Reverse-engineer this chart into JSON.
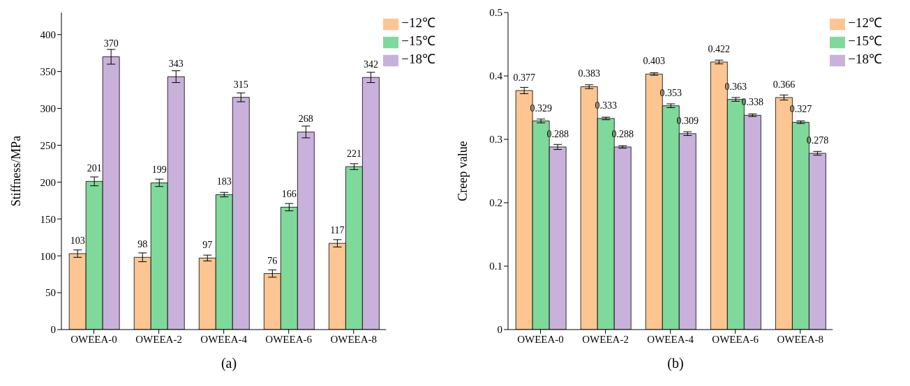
{
  "chart_data": [
    {
      "type": "bar",
      "title": "(a)",
      "ylabel": "Stiffness/MPa",
      "categories": [
        "OWEEA-0",
        "OWEEA-2",
        "OWEEA-4",
        "OWEEA-6",
        "OWEEA-8"
      ],
      "series": [
        {
          "name": "−12℃",
          "color": "#fdc591",
          "values": [
            103,
            98,
            97,
            76,
            117
          ],
          "errors": [
            5,
            6,
            4,
            5,
            5
          ]
        },
        {
          "name": "−15℃",
          "color": "#7fd99a",
          "values": [
            201,
            199,
            183,
            166,
            221
          ],
          "errors": [
            6,
            5,
            3,
            5,
            4
          ]
        },
        {
          "name": "−18℃",
          "color": "#c8b1da",
          "values": [
            370,
            343,
            315,
            268,
            342
          ],
          "errors": [
            10,
            8,
            6,
            8,
            7
          ]
        }
      ],
      "ylim": [
        0,
        430
      ],
      "yticks": [
        0,
        50,
        100,
        150,
        200,
        250,
        300,
        350,
        400
      ],
      "data_labels": true,
      "legend": "top right",
      "grid": false
    },
    {
      "type": "bar",
      "title": "(b)",
      "ylabel": "Creep value",
      "categories": [
        "OWEEA-0",
        "OWEEA-2",
        "OWEEA-4",
        "OWEEA-6",
        "OWEEA-8"
      ],
      "series": [
        {
          "name": "−12℃",
          "color": "#fdc591",
          "values": [
            0.377,
            0.383,
            0.403,
            0.422,
            0.366
          ],
          "errors": [
            0.005,
            0.003,
            0.002,
            0.003,
            0.004
          ]
        },
        {
          "name": "−15℃",
          "color": "#7fd99a",
          "values": [
            0.329,
            0.333,
            0.353,
            0.363,
            0.327
          ],
          "errors": [
            0.003,
            0.002,
            0.003,
            0.003,
            0.002
          ]
        },
        {
          "name": "−18℃",
          "color": "#c8b1da",
          "values": [
            0.288,
            0.288,
            0.309,
            0.338,
            0.278
          ],
          "errors": [
            0.004,
            0.002,
            0.003,
            0.002,
            0.003
          ]
        }
      ],
      "ylim": [
        0,
        0.5
      ],
      "yticks": [
        0,
        0.1,
        0.2,
        0.3,
        0.4,
        0.5
      ],
      "data_labels": true,
      "legend": "top right",
      "grid": false
    }
  ]
}
